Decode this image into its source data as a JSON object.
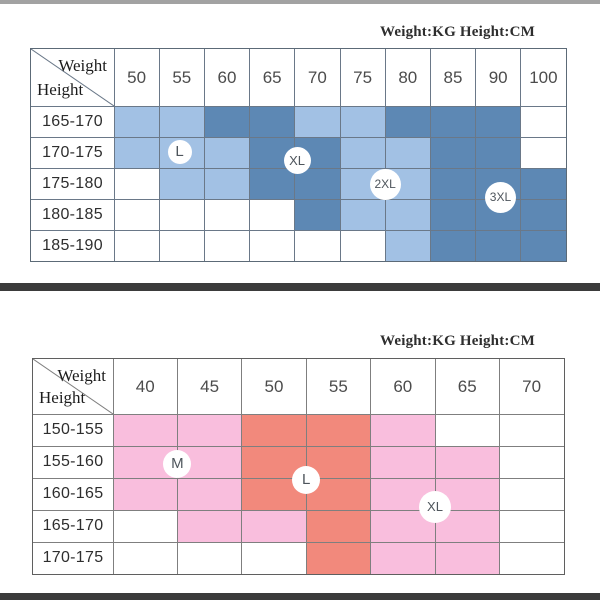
{
  "colors": {
    "top_edge_bar": "#a2a2a2",
    "divider_bar": "#3b3b3b",
    "bottom_edge_bar": "#3b3b3b"
  },
  "chart_data": [
    {
      "type": "heatmap",
      "title": "Weight:KG Height:CM",
      "xlabel": "Weight",
      "ylabel": "Height",
      "x_unit": "KG",
      "y_unit": "CM",
      "columns": [
        "50",
        "55",
        "60",
        "65",
        "70",
        "75",
        "80",
        "85",
        "90",
        "100"
      ],
      "rows": [
        "165-170",
        "170-175",
        "175-180",
        "180-185",
        "185-190"
      ],
      "palette": {
        "light": "#a2c1e4",
        "dark": "#5d88b4"
      },
      "cells": [
        [
          "light",
          "light",
          "dark",
          "dark",
          "light",
          "light",
          "dark",
          "dark",
          "dark",
          "none"
        ],
        [
          "light",
          "light",
          "light",
          "dark",
          "dark",
          "light",
          "light",
          "dark",
          "dark",
          "none"
        ],
        [
          "none",
          "light",
          "light",
          "dark",
          "dark",
          "light",
          "light",
          "dark",
          "dark",
          "dark"
        ],
        [
          "none",
          "none",
          "none",
          "none",
          "dark",
          "light",
          "light",
          "dark",
          "dark",
          "dark"
        ],
        [
          "none",
          "none",
          "none",
          "none",
          "none",
          "none",
          "light",
          "dark",
          "dark",
          "dark"
        ]
      ],
      "badges": [
        {
          "label": "L",
          "cx": 1.45,
          "cy": 1.48,
          "d": 24
        },
        {
          "label": "XL",
          "cx": 4.05,
          "cy": 1.75,
          "d": 27
        },
        {
          "label": "2XL",
          "cx": 6.0,
          "cy": 2.52,
          "d": 31
        },
        {
          "label": "3XL",
          "cx": 8.55,
          "cy": 2.95,
          "d": 31
        }
      ]
    },
    {
      "type": "heatmap",
      "title": "Weight:KG Height:CM",
      "xlabel": "Weight",
      "ylabel": "Height",
      "x_unit": "KG",
      "y_unit": "CM",
      "columns": [
        "40",
        "45",
        "50",
        "55",
        "60",
        "65",
        "70"
      ],
      "rows": [
        "150-155",
        "155-160",
        "160-165",
        "165-170",
        "170-175"
      ],
      "palette": {
        "light": "#f9bedd",
        "dark": "#f2897c"
      },
      "cells": [
        [
          "light",
          "light",
          "dark",
          "dark",
          "light",
          "none",
          "none"
        ],
        [
          "light",
          "light",
          "dark",
          "dark",
          "light",
          "light",
          "none"
        ],
        [
          "light",
          "light",
          "dark",
          "dark",
          "light",
          "light",
          "none"
        ],
        [
          "none",
          "light",
          "light",
          "dark",
          "light",
          "light",
          "none"
        ],
        [
          "none",
          "none",
          "none",
          "dark",
          "light",
          "light",
          "none"
        ]
      ],
      "badges": [
        {
          "label": "M",
          "cx": 1.0,
          "cy": 1.55,
          "d": 28
        },
        {
          "label": "L",
          "cx": 3.0,
          "cy": 2.05,
          "d": 28
        },
        {
          "label": "XL",
          "cx": 5.0,
          "cy": 2.9,
          "d": 32
        }
      ]
    }
  ]
}
